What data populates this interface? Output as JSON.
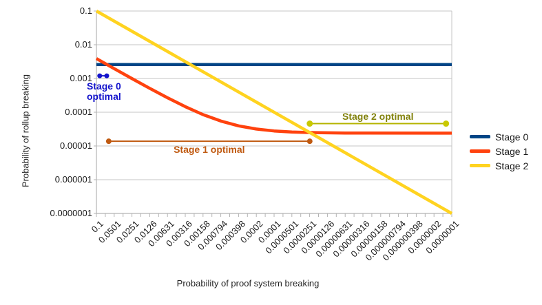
{
  "chart_data": {
    "type": "line",
    "title": "",
    "xlabel": "Probability of proof system breaking",
    "ylabel": "Probability of rollup breaking",
    "x_scale": "log",
    "y_scale": "log",
    "x_range": [
      0.1,
      1e-07
    ],
    "y_range": [
      0.1,
      1e-07
    ],
    "grid": "horizontal",
    "grid_color": "#c6c6c6",
    "axis_color": "#b3b3b3",
    "tick_text_color": "#1a1a1a",
    "background": "#ffffff",
    "legend_position": "right",
    "y_tick_labels": [
      "0.1",
      "0.01",
      "0.001",
      "0.0001",
      "0.00001",
      "0.000001",
      "0.0000001"
    ],
    "x_tick_labels": [
      "0.1",
      "0.0501",
      "0.0251",
      "0.0126",
      "0.00631",
      "0.00316",
      "0.00158",
      "0.000794",
      "0.000398",
      "0.0002",
      "0.0001",
      "0.0000501",
      "0.0000251",
      "0.0000126",
      "0.00000631",
      "0.00000316",
      "0.00000158",
      "0.000000794",
      "0.000000398",
      "0.0000002",
      "0.0000001"
    ],
    "series": [
      {
        "name": "Stage 0",
        "color": "#004586",
        "width": 4.5,
        "points": [
          [
            0.1,
            0.0026
          ],
          [
            1e-07,
            0.0026
          ]
        ]
      },
      {
        "name": "Stage 1",
        "color": "#ff420e",
        "width": 4.5,
        "points": [
          [
            0.1,
            0.00388
          ],
          [
            0.0501,
            0.00196
          ],
          [
            0.0251,
            0.000993
          ],
          [
            0.0126,
            0.00051
          ],
          [
            0.00631,
            0.000268
          ],
          [
            0.00316,
            0.000146
          ],
          [
            0.00158,
            8.5e-05
          ],
          [
            0.000794,
            5.47e-05
          ],
          [
            0.000398,
            3.94e-05
          ],
          [
            0.0002,
            3.17e-05
          ],
          [
            0.0001,
            2.79e-05
          ],
          [
            5.01e-05,
            2.59e-05
          ],
          [
            2.51e-05,
            2.5e-05
          ],
          [
            1.26e-05,
            2.45e-05
          ],
          [
            6.31e-06,
            2.42e-05
          ],
          [
            3.16e-06,
            2.41e-05
          ],
          [
            1e-07,
            2.4e-05
          ]
        ]
      },
      {
        "name": "Stage 2",
        "color": "#ffd320",
        "width": 4.5,
        "points": [
          [
            0.1,
            0.1
          ],
          [
            1e-07,
            1e-07
          ]
        ]
      }
    ],
    "annotations": [
      {
        "id": "stage0-optimal",
        "label_lines": [
          "Stage 0",
          "optimal"
        ],
        "y": 0.0012,
        "x_from": 0.088,
        "x_to": 0.067,
        "line_color": "#1414cc",
        "dot_color": "#1414cc",
        "text_color": "#1414cc",
        "line_width": 2,
        "dot_radius": 3.5,
        "label_offset": [
          1,
          8
        ]
      },
      {
        "id": "stage1-optimal",
        "label_lines": [
          "Stage 1 optimal"
        ],
        "y": 1.38e-05,
        "x_from": 0.062,
        "x_to": 2.5e-05,
        "line_color": "#c05a11",
        "dot_color": "#c05a11",
        "text_color": "#c05a11",
        "line_width": 2,
        "dot_radius": 4,
        "label_offset": [
          0,
          5
        ]
      },
      {
        "id": "stage2-optimal",
        "label_lines": [
          "Stage 2 optimal"
        ],
        "y": 4.6e-05,
        "x_from": 2.5e-05,
        "x_to": 1.25e-07,
        "line_color": "#b5b400",
        "dot_color": "#c9c900",
        "text_color": "#82820d",
        "line_width": 2,
        "dot_radius": 4.5,
        "label_offset": [
          0,
          -18
        ]
      }
    ]
  }
}
